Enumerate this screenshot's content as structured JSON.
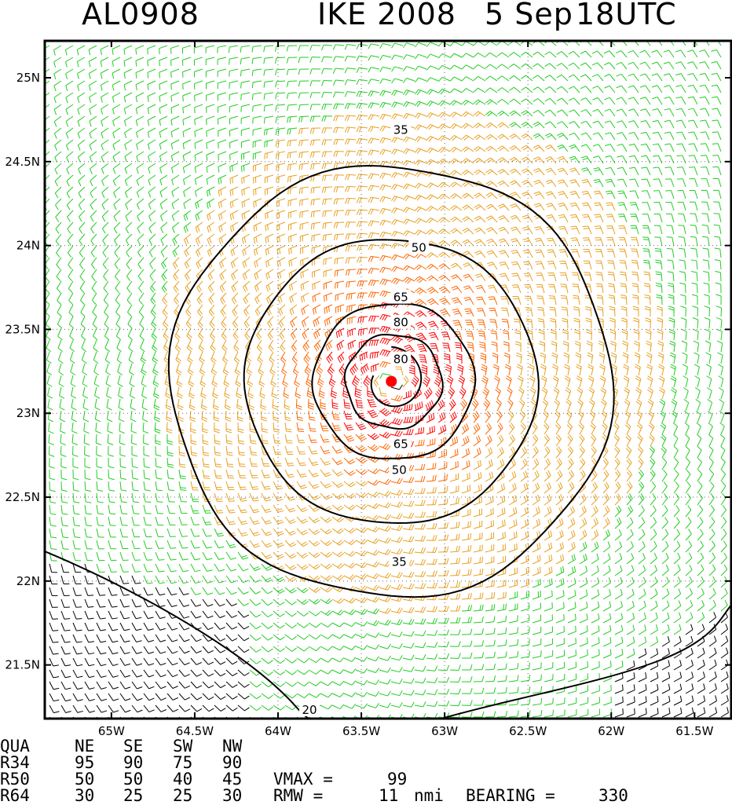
{
  "title": {
    "storm_id": "AL0908",
    "storm_name": "IKE 2008",
    "date": "5 Sep",
    "time": "18UTC"
  },
  "colors": {
    "barb_ge_64": "#ff0000",
    "barb_50_64": "#ff6600",
    "barb_34_50": "#e8a020",
    "barb_20_34": "#22cc22",
    "barb_lt_20": "#000000",
    "center_marker": "#ff0000",
    "contour": "#000000"
  },
  "map": {
    "lat_labels": [
      "25N",
      "24.5N",
      "24N",
      "23.5N",
      "23N",
      "22.5N",
      "22N",
      "21.5N"
    ],
    "lon_labels": [
      "65W",
      "64.5W",
      "64W",
      "63.5W",
      "63W",
      "62.5W",
      "62W",
      "61.5W"
    ],
    "lat_range": [
      21.18,
      25.22
    ],
    "lon_range": [
      -65.4,
      -61.28
    ],
    "center": {
      "lon": -63.32,
      "lat": 23.19
    },
    "contour_labels": [
      "35",
      "50",
      "65",
      "80",
      "80",
      "65",
      "50",
      "35",
      "20"
    ],
    "barb_field_icon": "wind-barbs"
  },
  "stats": {
    "headers": [
      "QUA",
      "NE",
      "SE",
      "SW",
      "NW"
    ],
    "rows": [
      {
        "label": "R34",
        "values": [
          "95",
          "90",
          "75",
          "90"
        ]
      },
      {
        "label": "R50",
        "values": [
          "50",
          "50",
          "40",
          "45"
        ]
      },
      {
        "label": "R64",
        "values": [
          "30",
          "25",
          "25",
          "30"
        ]
      }
    ],
    "vmax_label": "VMAX =",
    "vmax_value": "99",
    "rmw_label": "RMW =",
    "rmw_value": "11",
    "rmw_unit": "nmi",
    "bearing_label": "BEARING =",
    "bearing_value": "330"
  }
}
